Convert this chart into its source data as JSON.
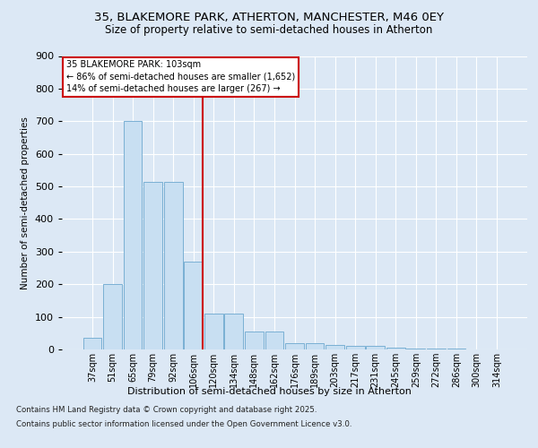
{
  "title_line1": "35, BLAKEMORE PARK, ATHERTON, MANCHESTER, M46 0EY",
  "title_line2": "Size of property relative to semi-detached houses in Atherton",
  "xlabel": "Distribution of semi-detached houses by size in Atherton",
  "ylabel": "Number of semi-detached properties",
  "categories": [
    "37sqm",
    "51sqm",
    "65sqm",
    "79sqm",
    "92sqm",
    "106sqm",
    "120sqm",
    "134sqm",
    "148sqm",
    "162sqm",
    "176sqm",
    "189sqm",
    "203sqm",
    "217sqm",
    "231sqm",
    "245sqm",
    "259sqm",
    "272sqm",
    "286sqm",
    "300sqm",
    "314sqm"
  ],
  "values": [
    35,
    200,
    700,
    515,
    515,
    270,
    110,
    110,
    55,
    55,
    20,
    18,
    15,
    12,
    10,
    5,
    3,
    2,
    2,
    1,
    1
  ],
  "bar_color": "#c8dff2",
  "bar_edge_color": "#7ab0d4",
  "vline_x_idx": 5,
  "vline_color": "#cc0000",
  "annotation_title": "35 BLAKEMORE PARK: 103sqm",
  "annotation_line2": "← 86% of semi-detached houses are smaller (1,652)",
  "annotation_line3": "14% of semi-detached houses are larger (267) →",
  "annotation_box_color": "#cc0000",
  "ylim": [
    0,
    900
  ],
  "yticks": [
    0,
    100,
    200,
    300,
    400,
    500,
    600,
    700,
    800,
    900
  ],
  "footnote1": "Contains HM Land Registry data © Crown copyright and database right 2025.",
  "footnote2": "Contains public sector information licensed under the Open Government Licence v3.0.",
  "bg_color": "#dce8f5",
  "plot_bg_color": "#dce8f5",
  "title1_fontsize": 9.5,
  "title2_fontsize": 8.5
}
